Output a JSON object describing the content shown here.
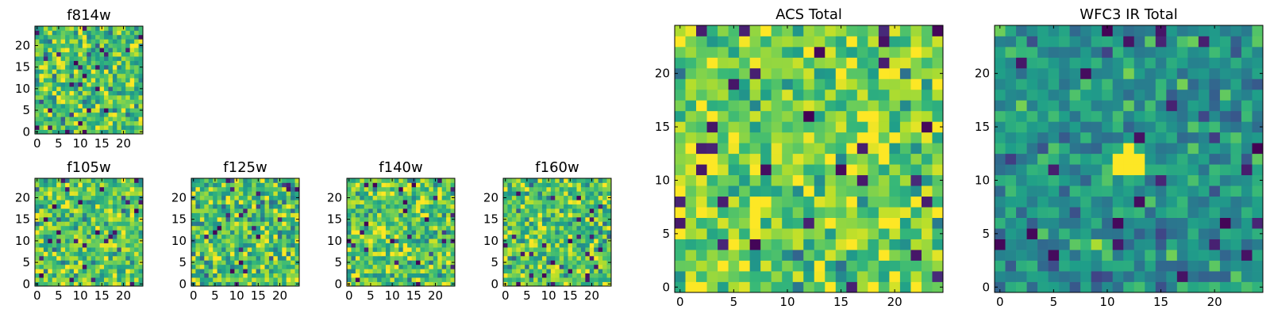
{
  "chart_data": [
    {
      "type": "heatmap",
      "title": "f814w",
      "colormap": "viridis",
      "seed": 11,
      "mean": 0.72,
      "noise": 0.17,
      "xlim": [
        0,
        24
      ],
      "ylim": [
        0,
        24
      ],
      "xticks": [
        0,
        5,
        10,
        15,
        20
      ],
      "yticks": [
        0,
        5,
        10,
        15,
        20
      ],
      "xtick_labels": [
        "0",
        "5",
        "10",
        "15",
        "20"
      ],
      "ytick_labels": [
        "0",
        "5",
        "10",
        "15",
        "20"
      ]
    },
    {
      "type": "heatmap",
      "title": "f105w",
      "colormap": "viridis",
      "seed": 23,
      "mean": 0.74,
      "noise": 0.16,
      "xlim": [
        0,
        24
      ],
      "ylim": [
        0,
        24
      ],
      "xticks": [
        0,
        5,
        10,
        15,
        20
      ],
      "yticks": [
        0,
        5,
        10,
        15,
        20
      ],
      "xtick_labels": [
        "0",
        "5",
        "10",
        "15",
        "20"
      ],
      "ytick_labels": [
        "0",
        "5",
        "10",
        "15",
        "20"
      ]
    },
    {
      "type": "heatmap",
      "title": "f125w",
      "colormap": "viridis",
      "seed": 37,
      "mean": 0.7,
      "noise": 0.18,
      "xlim": [
        0,
        24
      ],
      "ylim": [
        0,
        24
      ],
      "xticks": [
        0,
        5,
        10,
        15,
        20
      ],
      "yticks": [
        0,
        5,
        10,
        15,
        20
      ],
      "xtick_labels": [
        "0",
        "5",
        "10",
        "15",
        "20"
      ],
      "ytick_labels": [
        "0",
        "5",
        "10",
        "15",
        "20"
      ]
    },
    {
      "type": "heatmap",
      "title": "f140w",
      "colormap": "viridis",
      "seed": 41,
      "mean": 0.74,
      "noise": 0.17,
      "xlim": [
        0,
        24
      ],
      "ylim": [
        0,
        24
      ],
      "xticks": [
        0,
        5,
        10,
        15,
        20
      ],
      "yticks": [
        0,
        5,
        10,
        15,
        20
      ],
      "xtick_labels": [
        "0",
        "5",
        "10",
        "15",
        "20"
      ],
      "ytick_labels": [
        "0",
        "5",
        "10",
        "15",
        "20"
      ]
    },
    {
      "type": "heatmap",
      "title": "f160w",
      "colormap": "viridis",
      "seed": 53,
      "mean": 0.73,
      "noise": 0.17,
      "xlim": [
        0,
        24
      ],
      "ylim": [
        0,
        24
      ],
      "xticks": [
        0,
        5,
        10,
        15,
        20
      ],
      "yticks": [
        0,
        5,
        10,
        15,
        20
      ],
      "xtick_labels": [
        "0",
        "5",
        "10",
        "15",
        "20"
      ],
      "ytick_labels": [
        "0",
        "5",
        "10",
        "15",
        "20"
      ]
    },
    {
      "type": "heatmap",
      "title": "ACS Total",
      "colormap": "viridis",
      "seed": 67,
      "mean": 0.76,
      "noise": 0.15,
      "xlim": [
        0,
        24
      ],
      "ylim": [
        0,
        24
      ],
      "xticks": [
        0,
        5,
        10,
        15,
        20
      ],
      "yticks": [
        0,
        5,
        10,
        15,
        20
      ],
      "xtick_labels": [
        "0",
        "5",
        "10",
        "15",
        "20"
      ],
      "ytick_labels": [
        "0",
        "5",
        "10",
        "15",
        "20"
      ]
    },
    {
      "type": "heatmap",
      "title": "WFC3 IR Total",
      "colormap": "viridis",
      "seed": 79,
      "mean": 0.5,
      "noise": 0.12,
      "bright_spot": {
        "cells": [
          [
            11,
            11
          ],
          [
            12,
            11
          ],
          [
            13,
            11
          ],
          [
            11,
            12
          ],
          [
            12,
            12
          ],
          [
            13,
            12
          ],
          [
            12,
            13
          ]
        ],
        "value": 1.0
      },
      "xlim": [
        0,
        24
      ],
      "ylim": [
        0,
        24
      ],
      "xticks": [
        0,
        5,
        10,
        15,
        20
      ],
      "yticks": [
        0,
        5,
        10,
        15,
        20
      ],
      "xtick_labels": [
        "0",
        "5",
        "10",
        "15",
        "20"
      ],
      "ytick_labels": [
        "0",
        "5",
        "10",
        "15",
        "20"
      ]
    }
  ]
}
